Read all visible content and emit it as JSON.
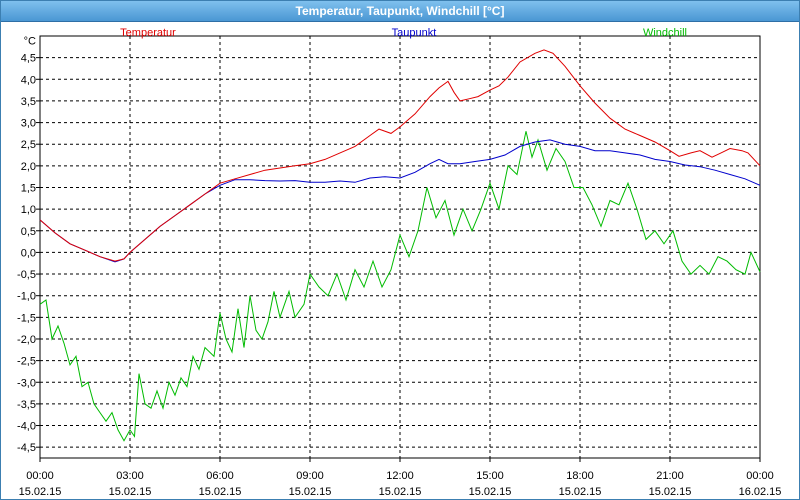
{
  "window": {
    "title": "Temperatur, Taupunkt, Windchill [°C]"
  },
  "chart_data": {
    "type": "line",
    "title": "Temperatur, Taupunkt, Windchill [°C]",
    "unit_label": "°C",
    "ylim": [
      -4.75,
      5.0
    ],
    "y_ticks": [
      "4,5",
      "4,0",
      "3,5",
      "3,0",
      "2,5",
      "2,0",
      "1,5",
      "1,0",
      "0,5",
      "0,0",
      "-0,5",
      "-1,0",
      "-1,5",
      "-2,0",
      "-2,5",
      "-3,0",
      "-3,5",
      "-4,0",
      "-4,5"
    ],
    "x_range_hours": [
      0,
      24
    ],
    "x_ticks": [
      {
        "time": "00:00",
        "date": "15.02.15"
      },
      {
        "time": "03:00",
        "date": "15.02.15"
      },
      {
        "time": "06:00",
        "date": "15.02.15"
      },
      {
        "time": "09:00",
        "date": "15.02.15"
      },
      {
        "time": "12:00",
        "date": "15.02.15"
      },
      {
        "time": "15:00",
        "date": "15.02.15"
      },
      {
        "time": "18:00",
        "date": "15.02.15"
      },
      {
        "time": "21:00",
        "date": "15.02.15"
      },
      {
        "time": "00:00",
        "date": "16.02.15"
      }
    ],
    "grid": true,
    "series": [
      {
        "name": "Temperatur",
        "color": "#e00000",
        "points": [
          [
            0,
            0.75
          ],
          [
            0.5,
            0.45
          ],
          [
            1,
            0.2
          ],
          [
            1.5,
            0.05
          ],
          [
            2,
            -0.1
          ],
          [
            2.5,
            -0.2
          ],
          [
            2.8,
            -0.15
          ],
          [
            3,
            0.0
          ],
          [
            3.5,
            0.3
          ],
          [
            4,
            0.6
          ],
          [
            4.5,
            0.85
          ],
          [
            5,
            1.1
          ],
          [
            5.5,
            1.35
          ],
          [
            6,
            1.6
          ],
          [
            6.5,
            1.7
          ],
          [
            7,
            1.8
          ],
          [
            7.5,
            1.9
          ],
          [
            8,
            1.95
          ],
          [
            8.5,
            2.0
          ],
          [
            9,
            2.05
          ],
          [
            9.5,
            2.15
          ],
          [
            10,
            2.3
          ],
          [
            10.5,
            2.45
          ],
          [
            11,
            2.7
          ],
          [
            11.3,
            2.85
          ],
          [
            11.7,
            2.75
          ],
          [
            12,
            2.9
          ],
          [
            12.5,
            3.2
          ],
          [
            13,
            3.6
          ],
          [
            13.3,
            3.8
          ],
          [
            13.6,
            3.95
          ],
          [
            13.8,
            3.7
          ],
          [
            14,
            3.5
          ],
          [
            14.3,
            3.55
          ],
          [
            14.6,
            3.6
          ],
          [
            15,
            3.75
          ],
          [
            15.3,
            3.85
          ],
          [
            15.6,
            4.05
          ],
          [
            16,
            4.4
          ],
          [
            16.5,
            4.6
          ],
          [
            16.8,
            4.68
          ],
          [
            17.1,
            4.6
          ],
          [
            17.5,
            4.3
          ],
          [
            18,
            3.85
          ],
          [
            18.5,
            3.45
          ],
          [
            19,
            3.1
          ],
          [
            19.5,
            2.85
          ],
          [
            20,
            2.7
          ],
          [
            20.5,
            2.55
          ],
          [
            21,
            2.35
          ],
          [
            21.3,
            2.22
          ],
          [
            21.7,
            2.3
          ],
          [
            22,
            2.35
          ],
          [
            22.4,
            2.2
          ],
          [
            22.7,
            2.3
          ],
          [
            23,
            2.4
          ],
          [
            23.4,
            2.35
          ],
          [
            23.6,
            2.3
          ],
          [
            24,
            2.0
          ]
        ]
      },
      {
        "name": "Taupunkt",
        "color": "#0000cc",
        "points": [
          [
            0,
            0.75
          ],
          [
            0.5,
            0.45
          ],
          [
            1,
            0.2
          ],
          [
            1.5,
            0.05
          ],
          [
            2,
            -0.1
          ],
          [
            2.5,
            -0.22
          ],
          [
            2.8,
            -0.15
          ],
          [
            3,
            0.0
          ],
          [
            3.5,
            0.3
          ],
          [
            4,
            0.6
          ],
          [
            4.5,
            0.85
          ],
          [
            5,
            1.1
          ],
          [
            5.5,
            1.35
          ],
          [
            6,
            1.55
          ],
          [
            6.5,
            1.68
          ],
          [
            7,
            1.68
          ],
          [
            7.5,
            1.66
          ],
          [
            8,
            1.65
          ],
          [
            8.5,
            1.66
          ],
          [
            9,
            1.62
          ],
          [
            9.5,
            1.62
          ],
          [
            10,
            1.65
          ],
          [
            10.5,
            1.62
          ],
          [
            11,
            1.72
          ],
          [
            11.5,
            1.75
          ],
          [
            12,
            1.72
          ],
          [
            12.5,
            1.85
          ],
          [
            13,
            2.05
          ],
          [
            13.3,
            2.15
          ],
          [
            13.6,
            2.05
          ],
          [
            14,
            2.05
          ],
          [
            14.5,
            2.1
          ],
          [
            15,
            2.15
          ],
          [
            15.5,
            2.25
          ],
          [
            16,
            2.45
          ],
          [
            16.5,
            2.55
          ],
          [
            17,
            2.6
          ],
          [
            17.5,
            2.5
          ],
          [
            18,
            2.45
          ],
          [
            18.5,
            2.35
          ],
          [
            19,
            2.35
          ],
          [
            19.5,
            2.3
          ],
          [
            20,
            2.25
          ],
          [
            20.5,
            2.15
          ],
          [
            21,
            2.1
          ],
          [
            21.5,
            2.02
          ],
          [
            22,
            1.98
          ],
          [
            22.5,
            1.9
          ],
          [
            23,
            1.8
          ],
          [
            23.5,
            1.7
          ],
          [
            24,
            1.55
          ]
        ]
      },
      {
        "name": "Windchill",
        "color": "#00bb00",
        "points": [
          [
            0,
            -1.2
          ],
          [
            0.2,
            -1.1
          ],
          [
            0.4,
            -2.0
          ],
          [
            0.6,
            -1.7
          ],
          [
            0.8,
            -2.1
          ],
          [
            1,
            -2.6
          ],
          [
            1.2,
            -2.4
          ],
          [
            1.4,
            -3.1
          ],
          [
            1.6,
            -3.0
          ],
          [
            1.8,
            -3.5
          ],
          [
            2,
            -3.7
          ],
          [
            2.2,
            -3.9
          ],
          [
            2.4,
            -3.7
          ],
          [
            2.6,
            -4.1
          ],
          [
            2.8,
            -4.35
          ],
          [
            3,
            -4.1
          ],
          [
            3.15,
            -4.25
          ],
          [
            3.3,
            -2.8
          ],
          [
            3.5,
            -3.5
          ],
          [
            3.7,
            -3.6
          ],
          [
            3.9,
            -3.2
          ],
          [
            4.1,
            -3.6
          ],
          [
            4.3,
            -3.0
          ],
          [
            4.5,
            -3.3
          ],
          [
            4.7,
            -2.9
          ],
          [
            4.9,
            -3.1
          ],
          [
            5.1,
            -2.4
          ],
          [
            5.3,
            -2.7
          ],
          [
            5.5,
            -2.2
          ],
          [
            5.8,
            -2.4
          ],
          [
            6,
            -1.4
          ],
          [
            6.2,
            -2.0
          ],
          [
            6.4,
            -2.3
          ],
          [
            6.6,
            -1.3
          ],
          [
            6.8,
            -2.2
          ],
          [
            7,
            -1.0
          ],
          [
            7.2,
            -1.8
          ],
          [
            7.4,
            -2.0
          ],
          [
            7.6,
            -1.6
          ],
          [
            7.8,
            -0.9
          ],
          [
            8,
            -1.5
          ],
          [
            8.3,
            -0.9
          ],
          [
            8.5,
            -1.5
          ],
          [
            8.8,
            -1.2
          ],
          [
            9,
            -0.5
          ],
          [
            9.3,
            -0.8
          ],
          [
            9.6,
            -1.0
          ],
          [
            9.9,
            -0.5
          ],
          [
            10.2,
            -1.1
          ],
          [
            10.5,
            -0.4
          ],
          [
            10.8,
            -0.8
          ],
          [
            11.1,
            -0.2
          ],
          [
            11.4,
            -0.8
          ],
          [
            11.7,
            -0.4
          ],
          [
            12,
            0.4
          ],
          [
            12.3,
            -0.1
          ],
          [
            12.6,
            0.5
          ],
          [
            12.9,
            1.5
          ],
          [
            13.2,
            0.8
          ],
          [
            13.5,
            1.2
          ],
          [
            13.8,
            0.4
          ],
          [
            14.1,
            1.0
          ],
          [
            14.4,
            0.5
          ],
          [
            14.7,
            1.0
          ],
          [
            15,
            1.6
          ],
          [
            15.3,
            1.0
          ],
          [
            15.6,
            2.0
          ],
          [
            15.9,
            1.8
          ],
          [
            16.2,
            2.8
          ],
          [
            16.4,
            2.2
          ],
          [
            16.6,
            2.6
          ],
          [
            16.9,
            1.9
          ],
          [
            17.2,
            2.4
          ],
          [
            17.5,
            2.1
          ],
          [
            17.8,
            1.5
          ],
          [
            18.1,
            1.5
          ],
          [
            18.4,
            1.1
          ],
          [
            18.7,
            0.6
          ],
          [
            19,
            1.2
          ],
          [
            19.3,
            1.1
          ],
          [
            19.6,
            1.6
          ],
          [
            19.9,
            1.0
          ],
          [
            20.2,
            0.3
          ],
          [
            20.5,
            0.5
          ],
          [
            20.8,
            0.2
          ],
          [
            21.1,
            0.5
          ],
          [
            21.4,
            -0.2
          ],
          [
            21.7,
            -0.5
          ],
          [
            22,
            -0.3
          ],
          [
            22.3,
            -0.5
          ],
          [
            22.6,
            -0.1
          ],
          [
            22.9,
            -0.2
          ],
          [
            23.2,
            -0.4
          ],
          [
            23.5,
            -0.5
          ],
          [
            23.7,
            0.0
          ],
          [
            24,
            -0.45
          ]
        ]
      }
    ]
  }
}
